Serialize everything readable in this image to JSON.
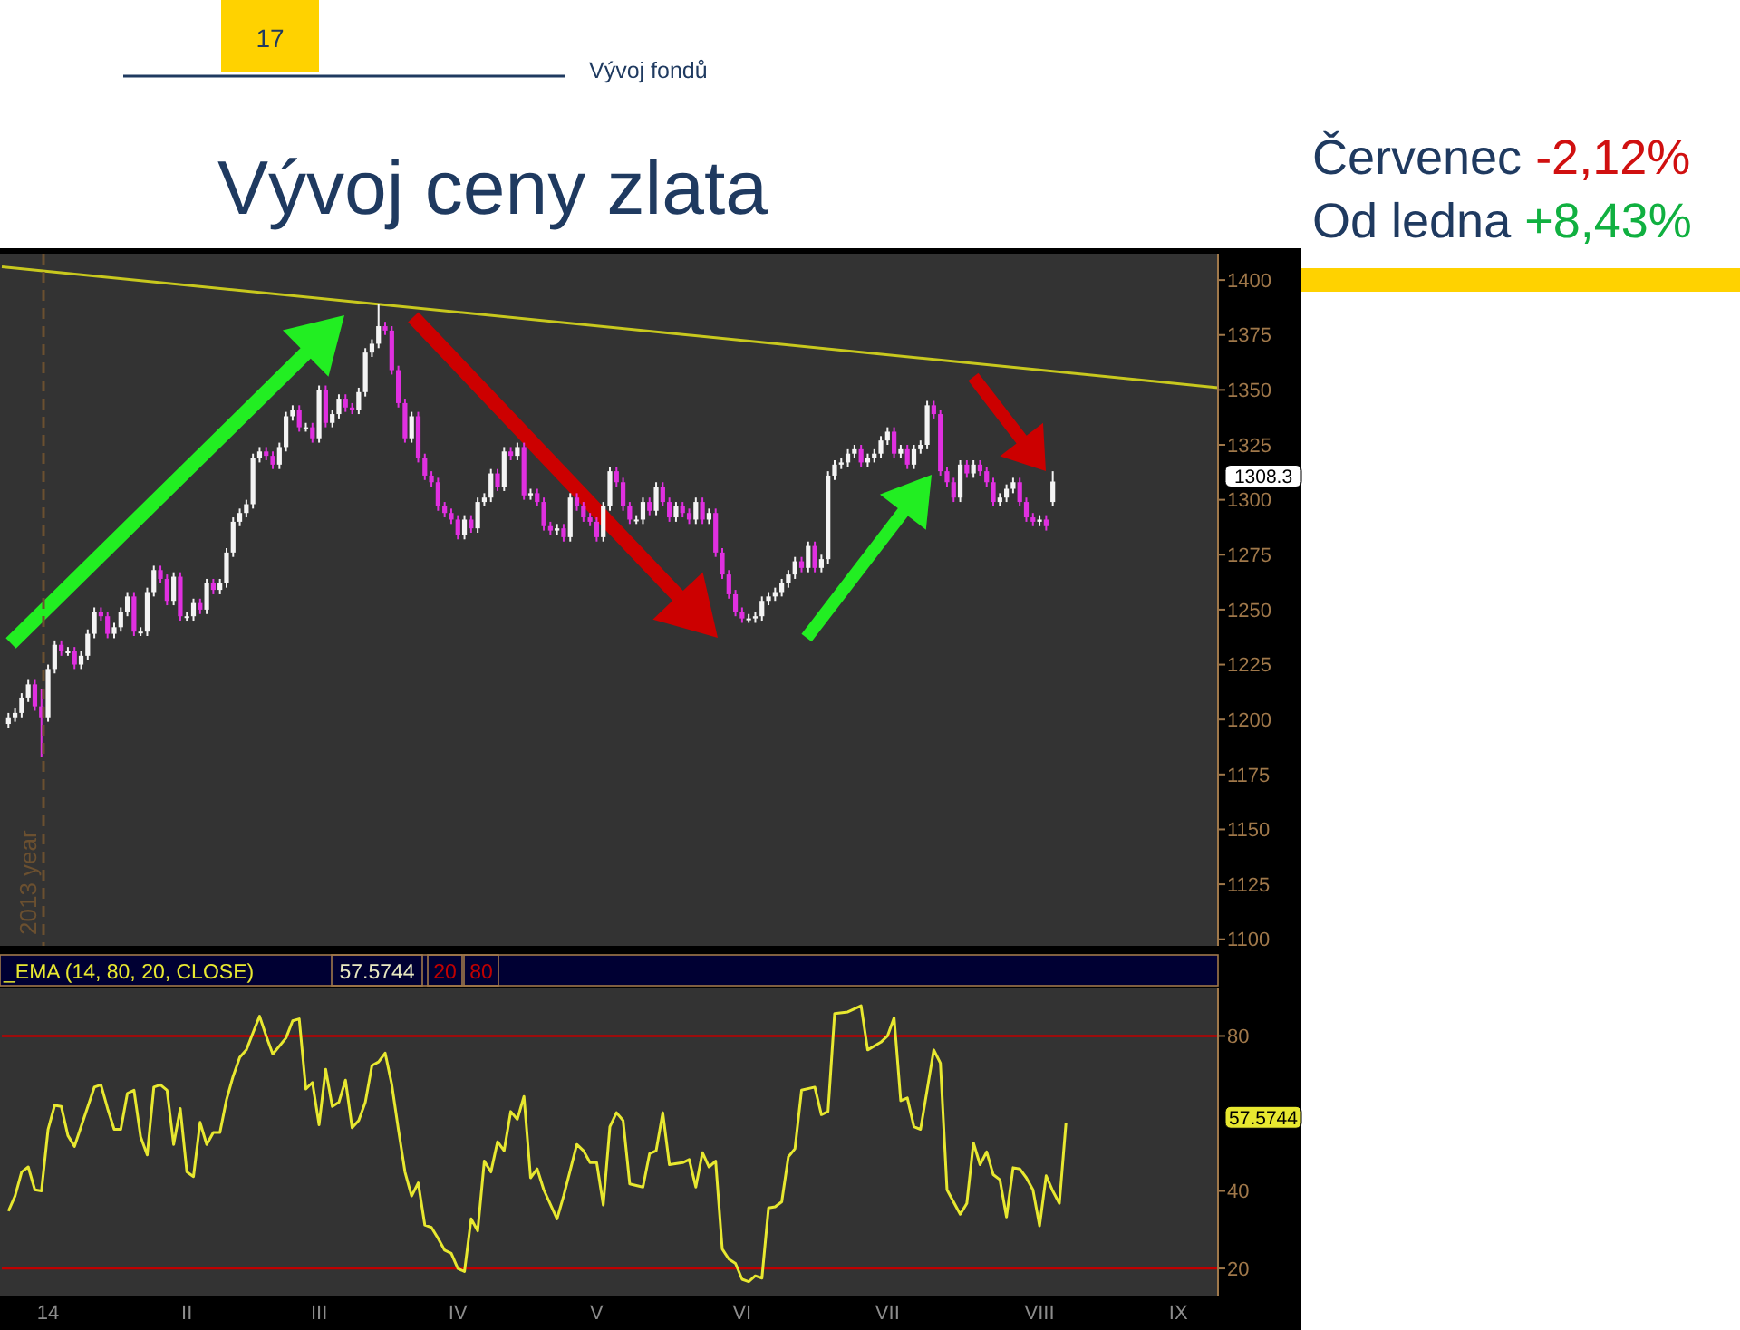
{
  "chart_data": [
    {
      "type": "candlestick",
      "title": "Vývoj ceny zlata",
      "annotations": [
        "17",
        "Vývoj fondů",
        "Červenec -2,12%",
        "Od ledna +8,43%",
        "2013 year",
        "1308.3"
      ],
      "categories": [
        null,
        null,
        null,
        null,
        null,
        null,
        null,
        null,
        null,
        null,
        null,
        null,
        null,
        null,
        null,
        null,
        null,
        null,
        null,
        null,
        null,
        null,
        null,
        null,
        null,
        null,
        null,
        null,
        null,
        null,
        null,
        null,
        null,
        null,
        null,
        null,
        null,
        null,
        null,
        null,
        null,
        null,
        null,
        null,
        null,
        null,
        null,
        null,
        null,
        null,
        null,
        null,
        null,
        null,
        null,
        null,
        null,
        null,
        null,
        null,
        null,
        null,
        null,
        null,
        null,
        null,
        null,
        null,
        null,
        null,
        null,
        null,
        null,
        null,
        null,
        null,
        null,
        null,
        null,
        null,
        null,
        null,
        null,
        null,
        null,
        null,
        null,
        null,
        null,
        null,
        null,
        null,
        null,
        null,
        null,
        null,
        null,
        null,
        null,
        null,
        null,
        null,
        null,
        null,
        null,
        null,
        null,
        null,
        null,
        null,
        null,
        null,
        null,
        null,
        null,
        null,
        null,
        null,
        null,
        null,
        null,
        null,
        null,
        null,
        null,
        null,
        null,
        null,
        null,
        null,
        null,
        null,
        null,
        null,
        null,
        null,
        null,
        null,
        null,
        null,
        null,
        null,
        null,
        null,
        null,
        null,
        null,
        null,
        null,
        null,
        null,
        null,
        null,
        null,
        null,
        null,
        null,
        null,
        null,
        null,
        null,
        null,
        null,
        null,
        null,
        null,
        null,
        null,
        null,
        null,
        null,
        null,
        null,
        null,
        null,
        null,
        null,
        null,
        null,
        null,
        null,
        null,
        null,
        null,
        null
      ],
      "ohlc": [
        null,
        [
          1198,
          1203,
          1196,
          1201
        ],
        [
          1201,
          1205,
          1199,
          1203
        ],
        [
          1203,
          1212,
          1201,
          1210
        ],
        [
          1210,
          1218,
          1208,
          1216
        ],
        [
          1216,
          1218,
          1204,
          1206
        ],
        [
          1206,
          1214,
          1183,
          1201
        ],
        [
          1201,
          1225,
          1199,
          1223
        ],
        [
          1223,
          1236,
          1221,
          1234
        ],
        [
          1234,
          1236,
          1229,
          1231
        ],
        [
          1231,
          1233,
          1229,
          1231
        ],
        [
          1231,
          1233,
          1223,
          1225
        ],
        [
          1225,
          1231,
          1223,
          1229
        ],
        [
          1229,
          1241,
          1227,
          1239
        ],
        [
          1239,
          1251,
          1237,
          1249
        ],
        [
          1249,
          1251,
          1245,
          1247
        ],
        [
          1247,
          1249,
          1237,
          1239
        ],
        [
          1239,
          1244,
          1237,
          1242
        ],
        [
          1242,
          1251,
          1240,
          1249
        ],
        [
          1249,
          1258,
          1247,
          1256
        ],
        [
          1256,
          1258,
          1238,
          1240
        ],
        [
          1240,
          1242,
          1238,
          1240
        ],
        [
          1240,
          1260,
          1238,
          1258
        ],
        [
          1258,
          1270,
          1256,
          1268
        ],
        [
          1268,
          1270,
          1262,
          1264
        ],
        [
          1264,
          1266,
          1252,
          1254
        ],
        [
          1254,
          1267,
          1252,
          1265
        ],
        [
          1265,
          1267,
          1245,
          1247
        ],
        [
          1247,
          1249,
          1245,
          1247
        ],
        [
          1247,
          1255,
          1245,
          1253
        ],
        [
          1253,
          1255,
          1248,
          1250
        ],
        [
          1250,
          1264,
          1248,
          1262
        ],
        [
          1262,
          1264,
          1257,
          1259
        ],
        [
          1259,
          1264,
          1257,
          1262
        ],
        [
          1262,
          1278,
          1260,
          1276
        ],
        [
          1276,
          1292,
          1274,
          1290
        ],
        [
          1290,
          1296,
          1288,
          1294
        ],
        [
          1294,
          1300,
          1292,
          1298
        ],
        [
          1298,
          1321,
          1296,
          1319
        ],
        [
          1319,
          1324,
          1317,
          1322
        ],
        [
          1322,
          1324,
          1318,
          1320
        ],
        [
          1320,
          1322,
          1314,
          1316
        ],
        [
          1316,
          1326,
          1314,
          1324
        ],
        [
          1324,
          1340,
          1322,
          1338
        ],
        [
          1338,
          1343,
          1336,
          1341
        ],
        [
          1341,
          1343,
          1331,
          1333
        ],
        [
          1333,
          1335,
          1331,
          1333
        ],
        [
          1333,
          1335,
          1326,
          1328
        ],
        [
          1328,
          1352,
          1326,
          1350
        ],
        [
          1350,
          1352,
          1333,
          1335
        ],
        [
          1335,
          1341,
          1333,
          1339
        ],
        [
          1339,
          1348,
          1337,
          1346
        ],
        [
          1346,
          1348,
          1340,
          1342
        ],
        [
          1342,
          1344,
          1339,
          1341
        ],
        [
          1341,
          1351,
          1339,
          1349
        ],
        [
          1349,
          1369,
          1347,
          1367
        ],
        [
          1367,
          1373,
          1365,
          1371
        ],
        [
          1371,
          1389,
          1369,
          1379
        ],
        [
          1379,
          1381,
          1375,
          1377
        ],
        [
          1377,
          1379,
          1357,
          1359
        ],
        [
          1359,
          1361,
          1342,
          1344
        ],
        [
          1344,
          1346,
          1326,
          1328
        ],
        [
          1328,
          1340,
          1326,
          1338
        ],
        [
          1338,
          1340,
          1317,
          1319
        ],
        [
          1319,
          1321,
          1309,
          1311
        ],
        [
          1311,
          1313,
          1306,
          1308
        ],
        [
          1308,
          1310,
          1295,
          1297
        ],
        [
          1297,
          1299,
          1292,
          1294
        ],
        [
          1294,
          1296,
          1289,
          1291
        ],
        [
          1291,
          1293,
          1282,
          1284
        ],
        [
          1284,
          1293,
          1282,
          1291
        ],
        [
          1291,
          1293,
          1285,
          1287
        ],
        [
          1287,
          1301,
          1285,
          1299
        ],
        [
          1299,
          1303,
          1297,
          1301
        ],
        [
          1301,
          1314,
          1299,
          1312
        ],
        [
          1312,
          1314,
          1304,
          1306
        ],
        [
          1306,
          1324,
          1304,
          1322
        ],
        [
          1322,
          1324,
          1318,
          1320
        ],
        [
          1320,
          1326,
          1318,
          1324
        ],
        [
          1324,
          1326,
          1300,
          1302
        ],
        [
          1302,
          1305,
          1300,
          1303
        ],
        [
          1303,
          1305,
          1297,
          1299
        ],
        [
          1299,
          1301,
          1286,
          1288
        ],
        [
          1288,
          1290,
          1284,
          1286
        ],
        [
          1286,
          1289,
          1284,
          1287
        ],
        [
          1287,
          1289,
          1281,
          1283
        ],
        [
          1283,
          1303,
          1281,
          1301
        ],
        [
          1301,
          1303,
          1295,
          1297
        ],
        [
          1297,
          1299,
          1290,
          1292
        ],
        [
          1292,
          1294,
          1288,
          1290
        ],
        [
          1290,
          1292,
          1281,
          1283
        ],
        [
          1283,
          1299,
          1281,
          1297
        ],
        [
          1297,
          1315,
          1295,
          1313
        ],
        [
          1313,
          1315,
          1306,
          1308
        ],
        [
          1308,
          1310,
          1295,
          1297
        ],
        [
          1297,
          1299,
          1289,
          1291
        ],
        [
          1291,
          1293,
          1289,
          1291
        ],
        [
          1291,
          1301,
          1289,
          1299
        ],
        [
          1299,
          1301,
          1293,
          1295
        ],
        [
          1295,
          1308,
          1293,
          1306
        ],
        [
          1306,
          1308,
          1297,
          1299
        ],
        [
          1299,
          1301,
          1290,
          1292
        ],
        [
          1292,
          1299,
          1290,
          1297
        ],
        [
          1297,
          1299,
          1292,
          1294
        ],
        [
          1294,
          1296,
          1289,
          1291
        ],
        [
          1291,
          1301,
          1289,
          1299
        ],
        [
          1299,
          1301,
          1289,
          1291
        ],
        [
          1291,
          1296,
          1289,
          1294
        ],
        [
          1294,
          1296,
          1274,
          1276
        ],
        [
          1276,
          1278,
          1264,
          1266
        ],
        [
          1266,
          1268,
          1255,
          1257
        ],
        [
          1257,
          1259,
          1247,
          1249
        ],
        [
          1249,
          1251,
          1244,
          1246
        ],
        [
          1246,
          1248,
          1244,
          1246
        ],
        [
          1246,
          1249,
          1244,
          1247
        ],
        [
          1247,
          1256,
          1245,
          1254
        ],
        [
          1254,
          1258,
          1252,
          1256
        ],
        [
          1256,
          1260,
          1254,
          1258
        ],
        [
          1258,
          1264,
          1256,
          1262
        ],
        [
          1262,
          1268,
          1260,
          1266
        ],
        [
          1266,
          1274,
          1264,
          1272
        ],
        [
          1272,
          1274,
          1267,
          1269
        ],
        [
          1269,
          1281,
          1267,
          1279
        ],
        [
          1279,
          1281,
          1267,
          1269
        ],
        [
          1269,
          1275,
          1267,
          1273
        ],
        [
          1273,
          1313,
          1271,
          1311
        ],
        [
          1311,
          1318,
          1309,
          1316
        ],
        [
          1316,
          1319,
          1314,
          1317
        ],
        [
          1317,
          1323,
          1315,
          1321
        ],
        [
          1321,
          1325,
          1319,
          1323
        ],
        [
          1323,
          1325,
          1315,
          1317
        ],
        [
          1317,
          1321,
          1315,
          1319
        ],
        [
          1319,
          1323,
          1317,
          1321
        ],
        [
          1321,
          1329,
          1319,
          1327
        ],
        [
          1327,
          1333,
          1325,
          1331
        ],
        [
          1331,
          1333,
          1319,
          1321
        ],
        [
          1321,
          1325,
          1319,
          1323
        ],
        [
          1323,
          1325,
          1314,
          1316
        ],
        [
          1316,
          1325,
          1314,
          1323
        ],
        [
          1323,
          1327,
          1321,
          1325
        ],
        [
          1325,
          1345,
          1323,
          1343
        ],
        [
          1343,
          1345,
          1337,
          1339
        ],
        [
          1339,
          1341,
          1311,
          1313
        ],
        [
          1313,
          1315,
          1306,
          1308
        ],
        [
          1308,
          1310,
          1299,
          1301
        ],
        [
          1301,
          1318,
          1299,
          1316
        ],
        [
          1316,
          1318,
          1310,
          1312
        ],
        [
          1312,
          1318,
          1310,
          1316
        ],
        [
          1316,
          1318,
          1311,
          1313
        ],
        [
          1313,
          1315,
          1306,
          1308
        ],
        [
          1308,
          1310,
          1297,
          1299
        ],
        [
          1299,
          1303,
          1297,
          1301
        ],
        [
          1301,
          1307,
          1299,
          1305
        ],
        [
          1305,
          1310,
          1303,
          1308
        ],
        [
          1308,
          1310,
          1297,
          1299
        ],
        [
          1299,
          1301,
          1290,
          1292
        ],
        [
          1292,
          1294,
          1288,
          1290
        ],
        [
          1290,
          1293,
          1288,
          1291
        ],
        [
          1291,
          1293,
          1286,
          1288
        ],
        [
          1299,
          1313,
          1297,
          1308.3
        ],
        null,
        null,
        null,
        null,
        null,
        null,
        null,
        null,
        null,
        null,
        null,
        null,
        null,
        null,
        null,
        null,
        null,
        null,
        null,
        null,
        null,
        null,
        null,
        null,
        null
      ],
      "series": [
        {
          "type": "line",
          "color": "#c8c81e",
          "values": [
            1406,
            null,
            null,
            null,
            null,
            null,
            null,
            null,
            null,
            null,
            null,
            null,
            null,
            null,
            null,
            null,
            null,
            null,
            null,
            null,
            null,
            null,
            null,
            null,
            null,
            null,
            null,
            null,
            null,
            null,
            null,
            null,
            null,
            null,
            null,
            null,
            null,
            null,
            null,
            null,
            null,
            null,
            null,
            null,
            null,
            null,
            null,
            null,
            null,
            null,
            null,
            null,
            null,
            null,
            null,
            null,
            null,
            null,
            null,
            null,
            null,
            null,
            null,
            null,
            null,
            null,
            null,
            null,
            null,
            null,
            null,
            null,
            null,
            null,
            null,
            null,
            null,
            null,
            null,
            null,
            null,
            null,
            null,
            null,
            null,
            null,
            null,
            null,
            null,
            null,
            null,
            null,
            null,
            null,
            null,
            null,
            null,
            null,
            null,
            null,
            null,
            null,
            null,
            null,
            null,
            null,
            null,
            null,
            null,
            null,
            null,
            null,
            null,
            null,
            null,
            null,
            null,
            null,
            null,
            null,
            null,
            null,
            null,
            null,
            null,
            null,
            null,
            null,
            null,
            null,
            null,
            null,
            null,
            null,
            null,
            null,
            null,
            null,
            null,
            null,
            null,
            null,
            null,
            null,
            null,
            null,
            null,
            null,
            null,
            null,
            null,
            null,
            null,
            null,
            null,
            null,
            null,
            null,
            null,
            null,
            null,
            null,
            null,
            null,
            null,
            null,
            null,
            null,
            null,
            null,
            null,
            null,
            null,
            null,
            null,
            null,
            null,
            null,
            null,
            null,
            null,
            null,
            null,
            null,
            1351
          ]
        }
      ],
      "ylim": [
        1097,
        1412
      ],
      "yticks": [
        1100,
        1125,
        1150,
        1175,
        1200,
        1225,
        1250,
        1275,
        1300,
        1325,
        1350,
        1375,
        1400
      ],
      "tick_labels": "y"
    },
    {
      "type": "line",
      "legend": "top",
      "annotations": [
        "57.5744",
        "57.5744"
      ],
      "categories": [
        null,
        null,
        null,
        null,
        null,
        null,
        null,
        "14",
        null,
        null,
        null,
        null,
        null,
        null,
        null,
        null,
        null,
        null,
        null,
        null,
        null,
        null,
        null,
        null,
        null,
        null,
        null,
        null,
        "II",
        null,
        null,
        null,
        null,
        null,
        null,
        null,
        null,
        null,
        null,
        null,
        null,
        null,
        null,
        null,
        null,
        null,
        null,
        null,
        "III",
        null,
        null,
        null,
        null,
        null,
        null,
        null,
        null,
        null,
        null,
        null,
        null,
        null,
        null,
        null,
        null,
        null,
        null,
        null,
        null,
        "IV",
        null,
        null,
        null,
        null,
        null,
        null,
        null,
        null,
        null,
        null,
        null,
        null,
        null,
        null,
        null,
        null,
        null,
        null,
        null,
        null,
        "V",
        null,
        null,
        null,
        null,
        null,
        null,
        null,
        null,
        null,
        null,
        null,
        null,
        null,
        null,
        null,
        null,
        null,
        null,
        null,
        null,
        null,
        "VI",
        null,
        null,
        null,
        null,
        null,
        null,
        null,
        null,
        null,
        null,
        null,
        null,
        null,
        null,
        null,
        null,
        null,
        null,
        null,
        null,
        null,
        "VII",
        null,
        null,
        null,
        null,
        null,
        null,
        null,
        null,
        null,
        null,
        null,
        null,
        null,
        null,
        null,
        null,
        null,
        null,
        null,
        null,
        null,
        null,
        "VIII",
        null,
        null,
        null,
        null,
        null,
        null,
        null,
        null,
        null,
        null,
        null,
        null,
        null,
        null,
        null,
        null,
        null,
        null,
        null,
        null,
        "IX",
        null,
        null,
        null,
        null,
        null,
        null
      ],
      "series": [
        {
          "name": "_EMA (14, 80, 20, CLOSE)",
          "color": "#e8e830",
          "values": [
            null,
            34.8,
            38.7,
            44.9,
            46.2,
            40.3,
            40.0,
            55.9,
            62.1,
            61.8,
            54.3,
            51.5,
            56.6,
            null,
            66.8,
            67.4,
            61.3,
            55.9,
            55.9,
            65.2,
            66.0,
            54.0,
            49.3,
            66.8,
            67.4,
            66.0,
            52.0,
            61.3,
            44.9,
            43.7,
            57.7,
            52.0,
            55.1,
            55.1,
            63.6,
            69.6,
            74.5,
            76.4,
            80.8,
            85.1,
            80.0,
            75.3,
            null,
            79.5,
            83.9,
            84.4,
            66.3,
            68.0,
            57.1,
            71.4,
            61.8,
            62.9,
            68.6,
            56.3,
            58.2,
            62.9,
            72.4,
            73.3,
            75.6,
            67.5,
            55.9,
            44.9,
            38.7,
            42.1,
            31.2,
            30.6,
            27.8,
            24.7,
            23.9,
            20.0,
            19.2,
            32.8,
            29.7,
            47.7,
            44.9,
            52.7,
            50.4,
            60.5,
            58.5,
            64.4,
            43.4,
            45.7,
            40.3,
            null,
            32.8,
            38.7,
            null,
            52.0,
            50.4,
            47.3,
            47.3,
            36.4,
            56.6,
            60.2,
            58.2,
            41.8,
            null,
            41.0,
            49.6,
            50.4,
            60.2,
            46.8,
            null,
            47.3,
            48.1,
            41.0,
            49.9,
            46.2,
            47.7,
            25.0,
            22.4,
            21.3,
            17.2,
            16.6,
            18.1,
            17.5,
            35.6,
            35.9,
            37.2,
            48.8,
            50.9,
            66.0,
            null,
            66.8,
            59.7,
            60.5,
            85.8,
            null,
            86.2,
            null,
            87.8,
            76.4,
            null,
            78.4,
            80.0,
            84.7,
            63.3,
            64.0,
            56.6,
            55.9,
            null,
            76.4,
            73.0,
            40.3,
            null,
            34.0,
            36.8,
            52.4,
            46.8,
            50.1,
            44.2,
            42.9,
            33.3,
            46.0,
            45.7,
            43.4,
            40.3,
            31.0,
            43.9,
            40.0,
            36.8,
            57.6,
            null,
            null,
            null,
            null,
            null,
            null,
            null,
            null,
            null,
            null,
            null,
            null,
            null,
            null,
            null,
            null,
            null,
            null,
            null,
            null,
            null,
            null,
            null
          ]
        }
      ],
      "ref_lines": [
        {
          "axis": "y",
          "value": 20,
          "label": "20",
          "color": "#c00000"
        },
        {
          "axis": "y",
          "value": 80,
          "label": "80",
          "color": "#c00000"
        }
      ],
      "ylim": [
        13,
        92.5
      ],
      "yticks": [
        20,
        40,
        80
      ]
    }
  ]
}
